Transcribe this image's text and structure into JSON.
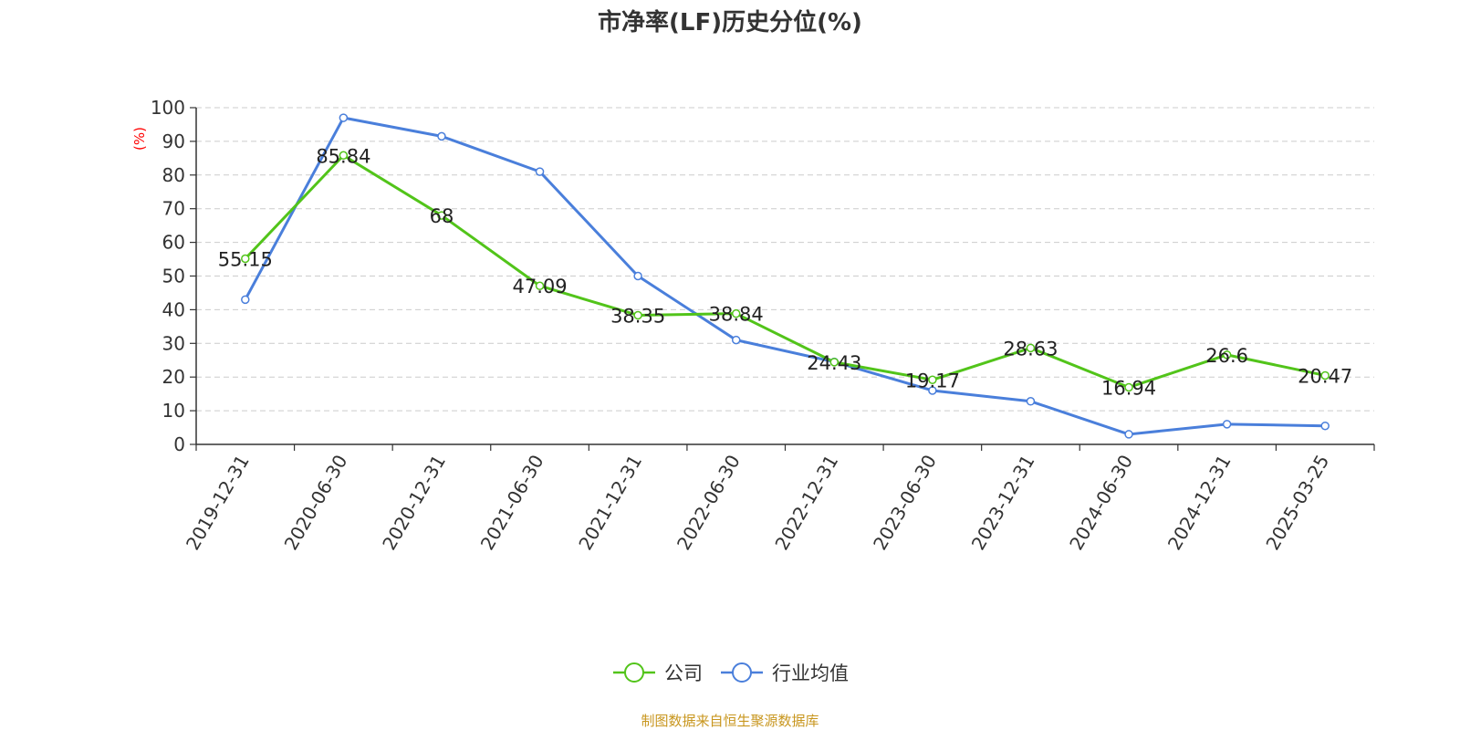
{
  "chart_data": {
    "type": "line",
    "title": "市净率(LF)历史分位(%)",
    "ylabel": "(%)",
    "ylim": [
      0,
      100
    ],
    "yticks": [
      0,
      10,
      20,
      30,
      40,
      50,
      60,
      70,
      80,
      90,
      100
    ],
    "grid": true,
    "legend_position": "bottom",
    "categories": [
      "2019-12-31",
      "2020-06-30",
      "2020-12-31",
      "2021-06-30",
      "2021-12-31",
      "2022-06-30",
      "2022-12-31",
      "2023-06-30",
      "2023-12-31",
      "2024-06-30",
      "2024-12-31",
      "2025-03-25"
    ],
    "series": [
      {
        "name": "公司",
        "color": "#52c41a",
        "values": [
          55.15,
          85.84,
          68,
          47.09,
          38.35,
          38.84,
          24.43,
          19.17,
          28.63,
          16.94,
          26.6,
          20.47
        ],
        "show_labels": true
      },
      {
        "name": "行业均值",
        "color": "#4a7fdb",
        "values": [
          43,
          97,
          91.5,
          81,
          50,
          31,
          24.5,
          16,
          12.8,
          3,
          6,
          5.5
        ],
        "show_labels": false
      }
    ]
  },
  "source": "制图数据来自恒生聚源数据库",
  "colors": {
    "axis": "#333333",
    "grid": "#cccccc",
    "ylabel": "#ff0000",
    "source": "#c8961e",
    "label": "#222222"
  }
}
